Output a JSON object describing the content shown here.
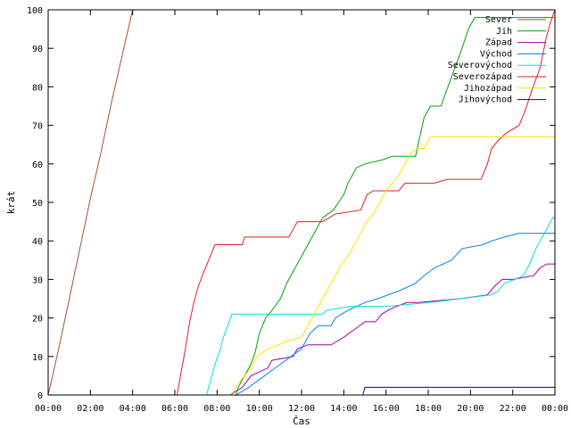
{
  "chart_data": {
    "type": "line",
    "title": "",
    "xlabel": "Čas",
    "ylabel": "krát",
    "xlim": [
      0,
      24
    ],
    "ylim": [
      0,
      100
    ],
    "x_ticks": [
      "00:00",
      "02:00",
      "04:00",
      "06:00",
      "08:00",
      "10:00",
      "12:00",
      "14:00",
      "16:00",
      "18:00",
      "20:00",
      "22:00",
      "00:00"
    ],
    "y_ticks": [
      0,
      10,
      20,
      30,
      40,
      50,
      60,
      70,
      80,
      90,
      100
    ],
    "legend_position": "top-right",
    "series": [
      {
        "name": "Sever",
        "color": "#a0522d",
        "points": [
          [
            0.0,
            0
          ],
          [
            0.5,
            12
          ],
          [
            1.0,
            25
          ],
          [
            1.5,
            38
          ],
          [
            2.0,
            51
          ],
          [
            2.5,
            63
          ],
          [
            3.0,
            76
          ],
          [
            3.5,
            88
          ],
          [
            4.0,
            100
          ]
        ]
      },
      {
        "name": "Jih",
        "color": "#00a000",
        "points": [
          [
            8.9,
            0
          ],
          [
            9.0,
            2
          ],
          [
            9.2,
            4
          ],
          [
            9.4,
            6
          ],
          [
            9.6,
            8
          ],
          [
            9.8,
            11
          ],
          [
            10.0,
            16
          ],
          [
            10.3,
            20
          ],
          [
            10.6,
            22
          ],
          [
            11.0,
            25
          ],
          [
            11.3,
            29
          ],
          [
            11.6,
            32
          ],
          [
            11.9,
            35
          ],
          [
            12.2,
            38
          ],
          [
            12.5,
            41
          ],
          [
            12.8,
            44
          ],
          [
            13.0,
            46
          ],
          [
            13.5,
            48
          ],
          [
            14.0,
            52
          ],
          [
            14.2,
            55
          ],
          [
            14.6,
            59
          ],
          [
            15.0,
            60
          ],
          [
            15.8,
            61
          ],
          [
            16.3,
            62
          ],
          [
            17.4,
            62
          ],
          [
            17.6,
            67
          ],
          [
            17.8,
            72
          ],
          [
            18.1,
            75
          ],
          [
            18.6,
            75
          ],
          [
            18.8,
            78
          ],
          [
            19.2,
            84
          ],
          [
            19.6,
            90
          ],
          [
            19.9,
            95
          ],
          [
            20.2,
            98
          ],
          [
            24.0,
            98
          ]
        ]
      },
      {
        "name": "Západ",
        "color": "#a000a0",
        "points": [
          [
            8.6,
            0
          ],
          [
            9.2,
            2
          ],
          [
            9.6,
            5
          ],
          [
            10.4,
            7
          ],
          [
            10.6,
            9
          ],
          [
            11.6,
            10
          ],
          [
            11.8,
            12
          ],
          [
            12.3,
            13
          ],
          [
            13.4,
            13
          ],
          [
            14.0,
            15
          ],
          [
            14.5,
            17
          ],
          [
            15.0,
            19
          ],
          [
            15.5,
            19
          ],
          [
            15.8,
            21
          ],
          [
            16.1,
            22
          ],
          [
            16.5,
            23
          ],
          [
            17.0,
            24
          ],
          [
            17.5,
            24
          ],
          [
            19.5,
            25
          ],
          [
            20.8,
            26
          ],
          [
            21.1,
            28
          ],
          [
            21.5,
            30
          ],
          [
            22.0,
            30
          ],
          [
            23.0,
            31
          ],
          [
            23.3,
            33
          ],
          [
            23.6,
            34
          ],
          [
            24.0,
            34
          ]
        ]
      },
      {
        "name": "Východ",
        "color": "#0080ff",
        "points": [
          [
            8.9,
            0
          ],
          [
            9.5,
            2
          ],
          [
            10.0,
            4
          ],
          [
            10.5,
            6
          ],
          [
            11.0,
            8
          ],
          [
            11.5,
            10
          ],
          [
            12.0,
            12
          ],
          [
            12.4,
            16
          ],
          [
            12.8,
            18
          ],
          [
            13.4,
            18
          ],
          [
            13.6,
            20
          ],
          [
            14.2,
            22
          ],
          [
            15.0,
            24
          ],
          [
            15.6,
            25
          ],
          [
            16.6,
            27
          ],
          [
            17.4,
            29
          ],
          [
            17.8,
            31
          ],
          [
            18.3,
            33
          ],
          [
            19.1,
            35
          ],
          [
            19.6,
            38
          ],
          [
            20.6,
            39
          ],
          [
            21.0,
            40
          ],
          [
            21.6,
            41
          ],
          [
            22.3,
            42
          ],
          [
            24.0,
            42
          ]
        ]
      },
      {
        "name": "Severovýchod",
        "color": "#00e0e0",
        "points": [
          [
            7.5,
            0
          ],
          [
            7.7,
            4
          ],
          [
            7.9,
            8
          ],
          [
            8.1,
            11
          ],
          [
            8.3,
            15
          ],
          [
            8.5,
            18
          ],
          [
            8.7,
            21
          ],
          [
            13.0,
            21
          ],
          [
            13.2,
            22
          ],
          [
            14.3,
            23
          ],
          [
            16.0,
            23
          ],
          [
            18.1,
            24
          ],
          [
            19.5,
            25
          ],
          [
            21.0,
            26
          ],
          [
            21.3,
            27
          ],
          [
            21.6,
            29
          ],
          [
            22.1,
            30
          ],
          [
            22.5,
            31
          ],
          [
            22.8,
            34
          ],
          [
            23.1,
            38
          ],
          [
            23.5,
            42
          ],
          [
            23.9,
            46
          ],
          [
            24.0,
            46
          ]
        ]
      },
      {
        "name": "Severozápad",
        "color": "#e02020",
        "points": [
          [
            6.1,
            0
          ],
          [
            6.3,
            6
          ],
          [
            6.5,
            12
          ],
          [
            6.7,
            19
          ],
          [
            6.9,
            24
          ],
          [
            7.1,
            28
          ],
          [
            7.3,
            31
          ],
          [
            7.6,
            35
          ],
          [
            7.9,
            39
          ],
          [
            9.2,
            39
          ],
          [
            9.3,
            41
          ],
          [
            11.4,
            41
          ],
          [
            11.6,
            43
          ],
          [
            11.8,
            45
          ],
          [
            13.0,
            45
          ],
          [
            13.6,
            47
          ],
          [
            14.8,
            48
          ],
          [
            15.1,
            52
          ],
          [
            15.4,
            53
          ],
          [
            16.6,
            53
          ],
          [
            16.9,
            55
          ],
          [
            18.3,
            55
          ],
          [
            18.9,
            56
          ],
          [
            20.5,
            56
          ],
          [
            20.8,
            60
          ],
          [
            21.0,
            64
          ],
          [
            21.3,
            66
          ],
          [
            21.7,
            68
          ],
          [
            22.3,
            70
          ],
          [
            22.6,
            74
          ],
          [
            22.9,
            79
          ],
          [
            23.3,
            85
          ],
          [
            23.6,
            93
          ],
          [
            23.8,
            97
          ],
          [
            24.0,
            100
          ]
        ]
      },
      {
        "name": "Jihozápad",
        "color": "#ffe000",
        "points": [
          [
            8.6,
            0
          ],
          [
            8.8,
            1
          ],
          [
            9.0,
            3
          ],
          [
            9.3,
            5
          ],
          [
            9.6,
            7
          ],
          [
            9.9,
            10
          ],
          [
            10.4,
            12
          ],
          [
            10.9,
            13
          ],
          [
            11.3,
            14
          ],
          [
            12.0,
            15
          ],
          [
            12.3,
            18
          ],
          [
            12.6,
            21
          ],
          [
            12.9,
            24
          ],
          [
            13.3,
            28
          ],
          [
            13.6,
            31
          ],
          [
            13.9,
            34
          ],
          [
            14.2,
            36
          ],
          [
            14.5,
            39
          ],
          [
            14.8,
            42
          ],
          [
            15.1,
            45
          ],
          [
            15.4,
            47
          ],
          [
            15.7,
            50
          ],
          [
            16.0,
            53
          ],
          [
            16.3,
            55
          ],
          [
            16.6,
            57
          ],
          [
            16.9,
            60
          ],
          [
            17.2,
            63
          ],
          [
            17.5,
            64
          ],
          [
            17.8,
            64
          ],
          [
            18.1,
            67
          ],
          [
            24.0,
            67
          ]
        ]
      },
      {
        "name": "Jihovýchod",
        "color": "#0000a0",
        "points": [
          [
            14.9,
            0
          ],
          [
            15.0,
            2
          ],
          [
            24.0,
            2
          ]
        ]
      }
    ]
  }
}
